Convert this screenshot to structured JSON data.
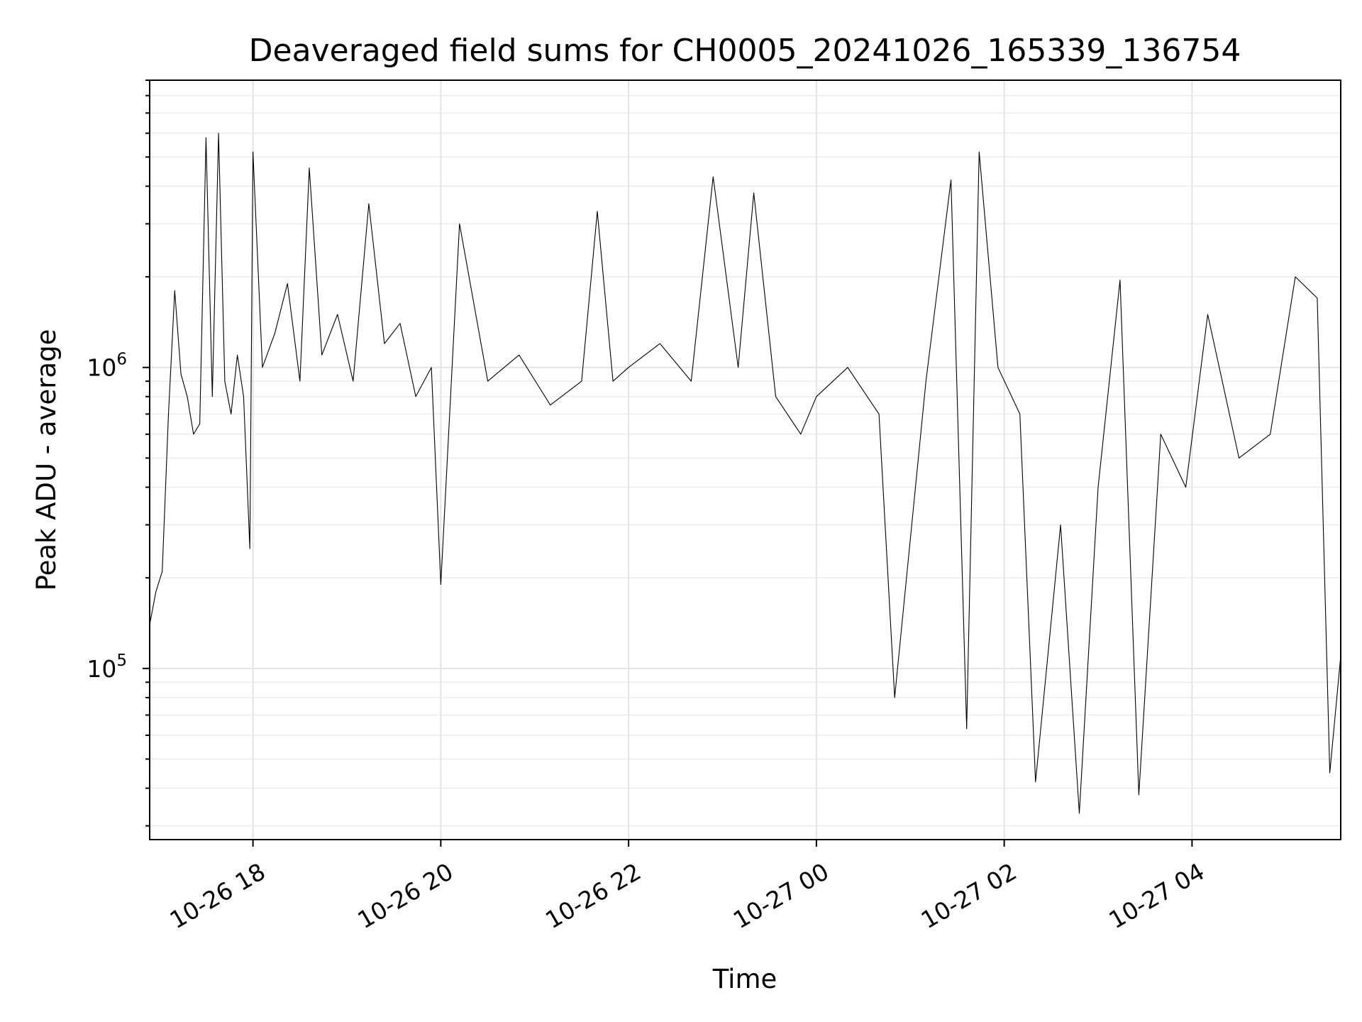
{
  "chart_data": {
    "type": "line",
    "title": "Deaveraged field sums for CH0005_20241026_165339_136754",
    "xlabel": "Time",
    "ylabel": "Peak ADU - average",
    "yscale": "log",
    "ylim": [
      27000,
      9000000
    ],
    "xlim": [
      "2024-10-26 16:54",
      "2024-10-27 05:35"
    ],
    "grid": "both",
    "y_ticks": [
      {
        "value": 100000,
        "base": "10",
        "exp": "5"
      },
      {
        "value": 1000000,
        "base": "10",
        "exp": "6"
      }
    ],
    "x_ticks": [
      {
        "value": "2024-10-26 18:00",
        "label": "10-26 18"
      },
      {
        "value": "2024-10-26 20:00",
        "label": "10-26 20"
      },
      {
        "value": "2024-10-26 22:00",
        "label": "10-26 22"
      },
      {
        "value": "2024-10-27 00:00",
        "label": "10-27 00"
      },
      {
        "value": "2024-10-27 02:00",
        "label": "10-27 02"
      },
      {
        "value": "2024-10-27 04:00",
        "label": "10-27 04"
      }
    ],
    "series": [
      {
        "color": "#000000",
        "points": [
          [
            "2024-10-26 16:54",
            140000
          ],
          [
            "2024-10-26 16:58",
            180000
          ],
          [
            "2024-10-26 17:02",
            210000
          ],
          [
            "2024-10-26 17:06",
            700000
          ],
          [
            "2024-10-26 17:10",
            1800000
          ],
          [
            "2024-10-26 17:14",
            950000
          ],
          [
            "2024-10-26 17:18",
            800000
          ],
          [
            "2024-10-26 17:22",
            600000
          ],
          [
            "2024-10-26 17:26",
            650000
          ],
          [
            "2024-10-26 17:30",
            5800000
          ],
          [
            "2024-10-26 17:34",
            800000
          ],
          [
            "2024-10-26 17:38",
            6000000
          ],
          [
            "2024-10-26 17:42",
            900000
          ],
          [
            "2024-10-26 17:46",
            700000
          ],
          [
            "2024-10-26 17:50",
            1100000
          ],
          [
            "2024-10-26 17:54",
            800000
          ],
          [
            "2024-10-26 17:58",
            250000
          ],
          [
            "2024-10-26 18:00",
            5200000
          ],
          [
            "2024-10-26 18:06",
            1000000
          ],
          [
            "2024-10-26 18:14",
            1300000
          ],
          [
            "2024-10-26 18:22",
            1900000
          ],
          [
            "2024-10-26 18:30",
            900000
          ],
          [
            "2024-10-26 18:36",
            4600000
          ],
          [
            "2024-10-26 18:44",
            1100000
          ],
          [
            "2024-10-26 18:54",
            1500000
          ],
          [
            "2024-10-26 19:04",
            900000
          ],
          [
            "2024-10-26 19:14",
            3500000
          ],
          [
            "2024-10-26 19:24",
            1200000
          ],
          [
            "2024-10-26 19:34",
            1400000
          ],
          [
            "2024-10-26 19:44",
            800000
          ],
          [
            "2024-10-26 19:54",
            1000000
          ],
          [
            "2024-10-26 20:00",
            190000
          ],
          [
            "2024-10-26 20:12",
            3000000
          ],
          [
            "2024-10-26 20:30",
            900000
          ],
          [
            "2024-10-26 20:50",
            1100000
          ],
          [
            "2024-10-26 21:10",
            750000
          ],
          [
            "2024-10-26 21:30",
            900000
          ],
          [
            "2024-10-26 21:40",
            3300000
          ],
          [
            "2024-10-26 21:50",
            900000
          ],
          [
            "2024-10-26 22:00",
            1000000
          ],
          [
            "2024-10-26 22:20",
            1200000
          ],
          [
            "2024-10-26 22:40",
            900000
          ],
          [
            "2024-10-26 22:54",
            4300000
          ],
          [
            "2024-10-26 23:10",
            1000000
          ],
          [
            "2024-10-26 23:20",
            3800000
          ],
          [
            "2024-10-26 23:34",
            800000
          ],
          [
            "2024-10-26 23:50",
            600000
          ],
          [
            "2024-10-27 00:00",
            800000
          ],
          [
            "2024-10-27 00:20",
            1000000
          ],
          [
            "2024-10-27 00:40",
            700000
          ],
          [
            "2024-10-27 00:50",
            80000
          ],
          [
            "2024-10-27 01:10",
            900000
          ],
          [
            "2024-10-27 01:26",
            4200000
          ],
          [
            "2024-10-27 01:36",
            63000
          ],
          [
            "2024-10-27 01:44",
            5200000
          ],
          [
            "2024-10-27 01:56",
            1000000
          ],
          [
            "2024-10-27 02:10",
            700000
          ],
          [
            "2024-10-27 02:20",
            42000
          ],
          [
            "2024-10-27 02:36",
            300000
          ],
          [
            "2024-10-27 02:48",
            33000
          ],
          [
            "2024-10-27 03:00",
            400000
          ],
          [
            "2024-10-27 03:14",
            1950000
          ],
          [
            "2024-10-27 03:26",
            38000
          ],
          [
            "2024-10-27 03:40",
            600000
          ],
          [
            "2024-10-27 03:56",
            400000
          ],
          [
            "2024-10-27 04:10",
            1500000
          ],
          [
            "2024-10-27 04:30",
            500000
          ],
          [
            "2024-10-27 04:50",
            600000
          ],
          [
            "2024-10-27 05:06",
            2000000
          ],
          [
            "2024-10-27 05:20",
            1700000
          ],
          [
            "2024-10-27 05:28",
            45000
          ],
          [
            "2024-10-27 05:35",
            110000
          ]
        ]
      }
    ]
  }
}
